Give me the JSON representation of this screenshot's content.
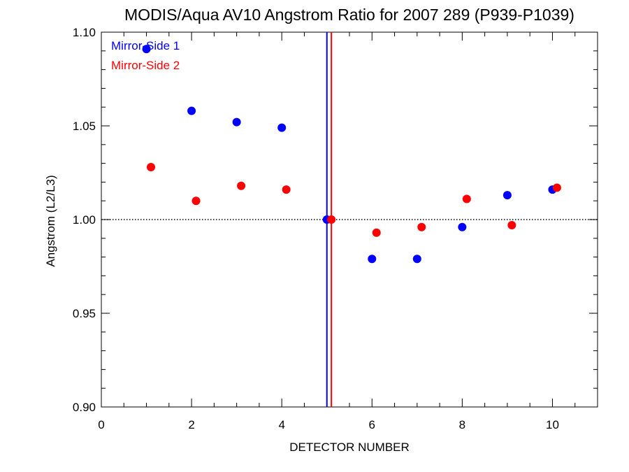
{
  "chart_data": {
    "type": "scatter",
    "title": "MODIS/Aqua AV10 Angstrom Ratio for 2007 289 (P939-P1039)",
    "xlabel": "DETECTOR NUMBER",
    "ylabel": "Angstrom (L2/L3)",
    "xlim": [
      0,
      11
    ],
    "ylim": [
      0.9,
      1.1
    ],
    "xticks": [
      "0",
      "2",
      "4",
      "6",
      "8",
      "10"
    ],
    "yticks": [
      "0.90",
      "0.95",
      "1.00",
      "1.05",
      "1.10"
    ],
    "reference_line_y": 1.0,
    "vertical_lines": [
      {
        "x": 5.0,
        "color": "#0000ff"
      },
      {
        "x": 5.1,
        "color": "#ff0000"
      }
    ],
    "legend_position": "top-left",
    "series": [
      {
        "name": "Mirror-Side 1",
        "color": "#0000ff",
        "x": [
          1,
          2,
          3,
          4,
          5,
          6,
          7,
          8,
          9,
          10
        ],
        "y": [
          1.091,
          1.058,
          1.052,
          1.049,
          1.0,
          0.979,
          0.979,
          0.996,
          1.013,
          1.016
        ]
      },
      {
        "name": "Mirror-Side 2",
        "color": "#ff0000",
        "x": [
          1.1,
          2.1,
          3.1,
          4.1,
          5.1,
          6.1,
          7.1,
          8.1,
          9.1,
          10.1
        ],
        "y": [
          1.028,
          1.01,
          1.018,
          1.016,
          1.0,
          0.993,
          0.996,
          1.011,
          0.997,
          1.017
        ]
      }
    ]
  }
}
